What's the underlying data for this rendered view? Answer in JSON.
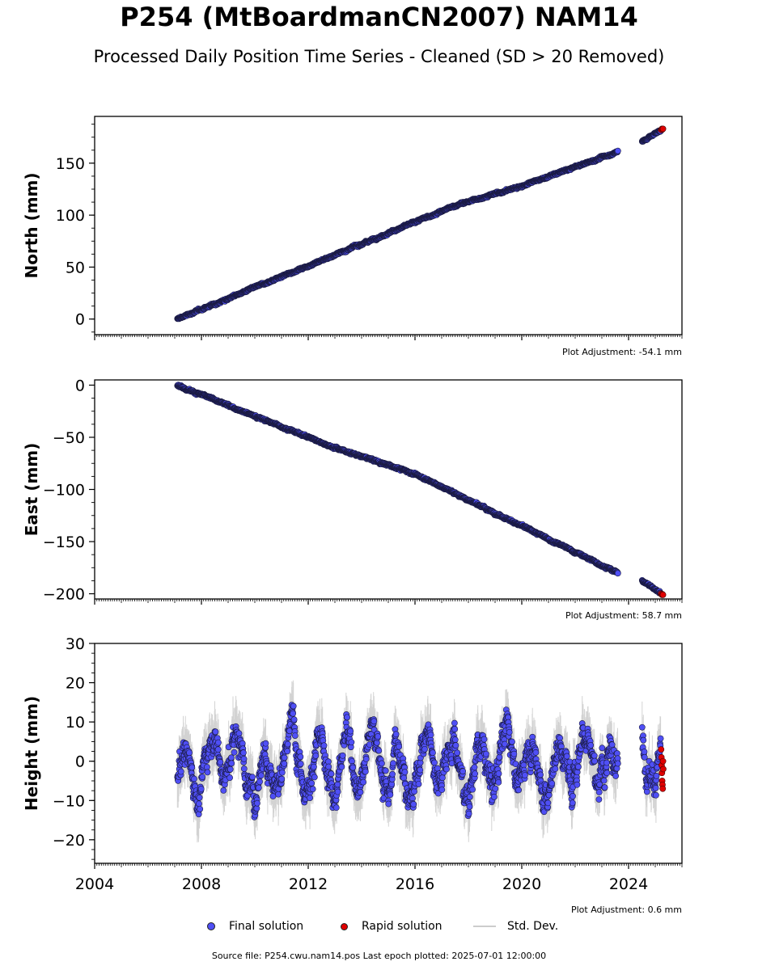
{
  "title": "P254 (MtBoardmanCN2007) NAM14",
  "subtitle": "Processed Daily Position Time Series - Cleaned (SD > 20 Removed)",
  "colors": {
    "final": "#4f4ff5",
    "rapid": "#e00000",
    "stddev": "#b0b0b0",
    "edge": "#1a1a40"
  },
  "legend": {
    "final": "Final solution",
    "rapid": "Rapid solution",
    "stddev": "Std. Dev."
  },
  "footer": "Source file: P254.cwu.nam14.pos  Last epoch plotted: 2025-07-01 12:00:00",
  "chart_data": [
    {
      "type": "scatter",
      "ylabel": "North (mm)",
      "adjustment": "Plot Adjustment: -54.1 mm",
      "xlim": [
        2004,
        2026
      ],
      "ylim": [
        -15,
        195
      ],
      "yticks": [
        0,
        50,
        100,
        150
      ],
      "ytick_labels": [
        "0",
        "50",
        "100",
        "150"
      ],
      "start": 2007.1,
      "trend": {
        "points": [
          [
            2007.1,
            0
          ],
          [
            2017.6,
            110
          ],
          [
            2020.0,
            128
          ],
          [
            2023.5,
            160
          ],
          [
            2024.5,
            171
          ],
          [
            2025.3,
            183
          ]
        ]
      },
      "noise": 1.5,
      "gaps": [
        [
          2023.6,
          2024.5
        ]
      ],
      "rapid": {
        "x": [
          2025.22,
          2025.25,
          2025.27,
          2025.29
        ],
        "y": [
          182,
          183,
          182.5,
          183
        ]
      }
    },
    {
      "type": "scatter",
      "ylabel": "East (mm)",
      "adjustment": "Plot Adjustment: 58.7 mm",
      "xlim": [
        2004,
        2026
      ],
      "ylim": [
        -205,
        5
      ],
      "yticks": [
        0,
        -50,
        -100,
        -150,
        -200
      ],
      "ytick_labels": [
        "0",
        "−50",
        "−100",
        "−150",
        "−200"
      ],
      "start": 2007.1,
      "trend": {
        "points": [
          [
            2007.1,
            0
          ],
          [
            2013.0,
            -60
          ],
          [
            2016.0,
            -85
          ],
          [
            2020.0,
            -135
          ],
          [
            2023.6,
            -180
          ],
          [
            2024.5,
            -187
          ],
          [
            2025.3,
            -201
          ]
        ]
      },
      "noise": 1.5,
      "gaps": [
        [
          2023.6,
          2024.5
        ]
      ],
      "rapid": {
        "x": [
          2025.22,
          2025.25,
          2025.27,
          2025.29
        ],
        "y": [
          -200,
          -201,
          -200.5,
          -201
        ]
      }
    },
    {
      "type": "scatter",
      "ylabel": "Height (mm)",
      "adjustment": "Plot Adjustment: 0.6 mm",
      "xlim": [
        2004,
        2026
      ],
      "ylim": [
        -26,
        30
      ],
      "yticks": [
        -20,
        -10,
        0,
        10,
        20,
        30
      ],
      "ytick_labels": [
        "−20",
        "−10",
        "0",
        "10",
        "20",
        "30"
      ],
      "xticks": [
        2004,
        2008,
        2012,
        2016,
        2020,
        2024
      ],
      "xtick_labels": [
        "2004",
        "2008",
        "2012",
        "2016",
        "2020",
        "2024"
      ],
      "start": 2007.1,
      "trend": {
        "points": [
          [
            2007.1,
            0
          ],
          [
            2025.3,
            0
          ]
        ]
      },
      "seasonal_amplitude": 7,
      "noise": 4,
      "gaps": [
        [
          2023.6,
          2024.5
        ]
      ],
      "rapid": {
        "x": [
          2025.22,
          2025.23,
          2025.24,
          2025.25,
          2025.26,
          2025.27,
          2025.28,
          2025.29,
          2025.3
        ],
        "y": [
          3,
          1,
          -1,
          -3,
          -5,
          -6,
          -7,
          0,
          -2
        ]
      }
    }
  ]
}
